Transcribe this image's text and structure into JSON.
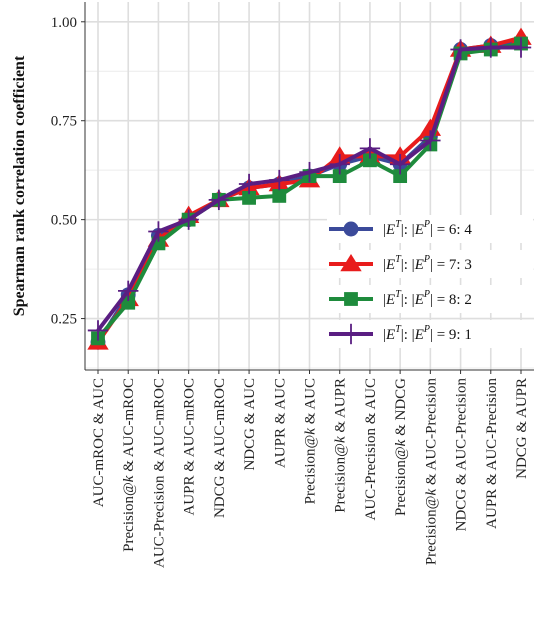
{
  "chart_data": {
    "type": "line",
    "ylabel": "Spearman rank correlation coefficient",
    "xlabel": "",
    "title": "",
    "ylim": [
      0.12,
      1.05
    ],
    "yticks": [
      0.25,
      0.5,
      0.75,
      1.0
    ],
    "ytick_labels": [
      "0.25",
      "0.50",
      "0.75",
      "1.00"
    ],
    "grid": true,
    "legend_position": "bottom-right",
    "categories": [
      "AUC-mROC & AUC",
      "Precision@k & AUC-mROC",
      "AUC-Precision & AUC-mROC",
      "AUPR & AUC-mROC",
      "NDCG & AUC-mROC",
      "NDCG & AUC",
      "AUPR & AUC",
      "Precision@k & AUC",
      "Precision@k & AUPR",
      "AUC-Precision & AUC",
      "Precision@k & NDCG",
      "Precision@k & AUC-Precision",
      "NDCG & AUC-Precision",
      "AUPR & AUC-Precision",
      "NDCG & AUPR"
    ],
    "series": [
      {
        "name": "|E^T|:|E^P| = 6:4",
        "legend_ratio": "6: 4",
        "color": "#3b4a9a",
        "marker": "circle",
        "values": [
          0.19,
          0.31,
          0.46,
          0.5,
          0.55,
          0.58,
          0.59,
          0.61,
          0.64,
          0.66,
          0.64,
          0.71,
          0.93,
          0.94,
          0.95
        ]
      },
      {
        "name": "|E^T|:|E^P| = 7:3",
        "legend_ratio": "7: 3",
        "color": "#e81c1c",
        "marker": "triangle",
        "values": [
          0.19,
          0.3,
          0.45,
          0.51,
          0.55,
          0.58,
          0.59,
          0.6,
          0.66,
          0.66,
          0.66,
          0.73,
          0.93,
          0.94,
          0.96
        ]
      },
      {
        "name": "|E^T|:|E^P| = 8:2",
        "legend_ratio": "8: 2",
        "color": "#1e8b3c",
        "marker": "square",
        "values": [
          0.2,
          0.29,
          0.44,
          0.5,
          0.55,
          0.555,
          0.56,
          0.61,
          0.61,
          0.65,
          0.61,
          0.69,
          0.92,
          0.93,
          0.945
        ]
      },
      {
        "name": "|E^T|:|E^P| = 9:1",
        "legend_ratio": "9: 1",
        "color": "#5a1e82",
        "marker": "plus",
        "values": [
          0.22,
          0.32,
          0.47,
          0.5,
          0.55,
          0.59,
          0.6,
          0.62,
          0.64,
          0.68,
          0.64,
          0.7,
          0.93,
          0.935,
          0.935
        ]
      }
    ]
  }
}
